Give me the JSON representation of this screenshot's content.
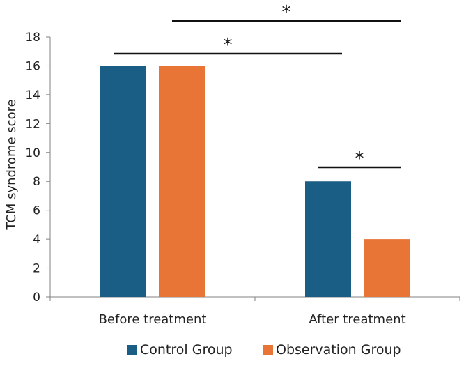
{
  "chart_data": {
    "type": "bar",
    "title": "",
    "xlabel": "",
    "ylabel": "TCM syndrome score",
    "categories": [
      "Before treatment",
      "After treatment"
    ],
    "series": [
      {
        "name": "Control Group",
        "color": "#1b5e85",
        "values": [
          16,
          8
        ]
      },
      {
        "name": "Observation Group",
        "color": "#e87436",
        "values": [
          16,
          4
        ]
      }
    ],
    "ylim": [
      0,
      18
    ],
    "yticks": [
      0,
      2,
      4,
      6,
      8,
      10,
      12,
      14,
      16,
      18
    ],
    "grid": false,
    "legend_position": "bottom",
    "significance": [
      {
        "label": "*",
        "from": "Before treatment / Control Group",
        "to": "After treatment / Control Group"
      },
      {
        "label": "*",
        "from": "Before treatment / Observation Group",
        "to": "After treatment / Observation Group"
      },
      {
        "label": "*",
        "from": "After treatment / Control Group",
        "to": "After treatment / Observation Group"
      }
    ]
  }
}
